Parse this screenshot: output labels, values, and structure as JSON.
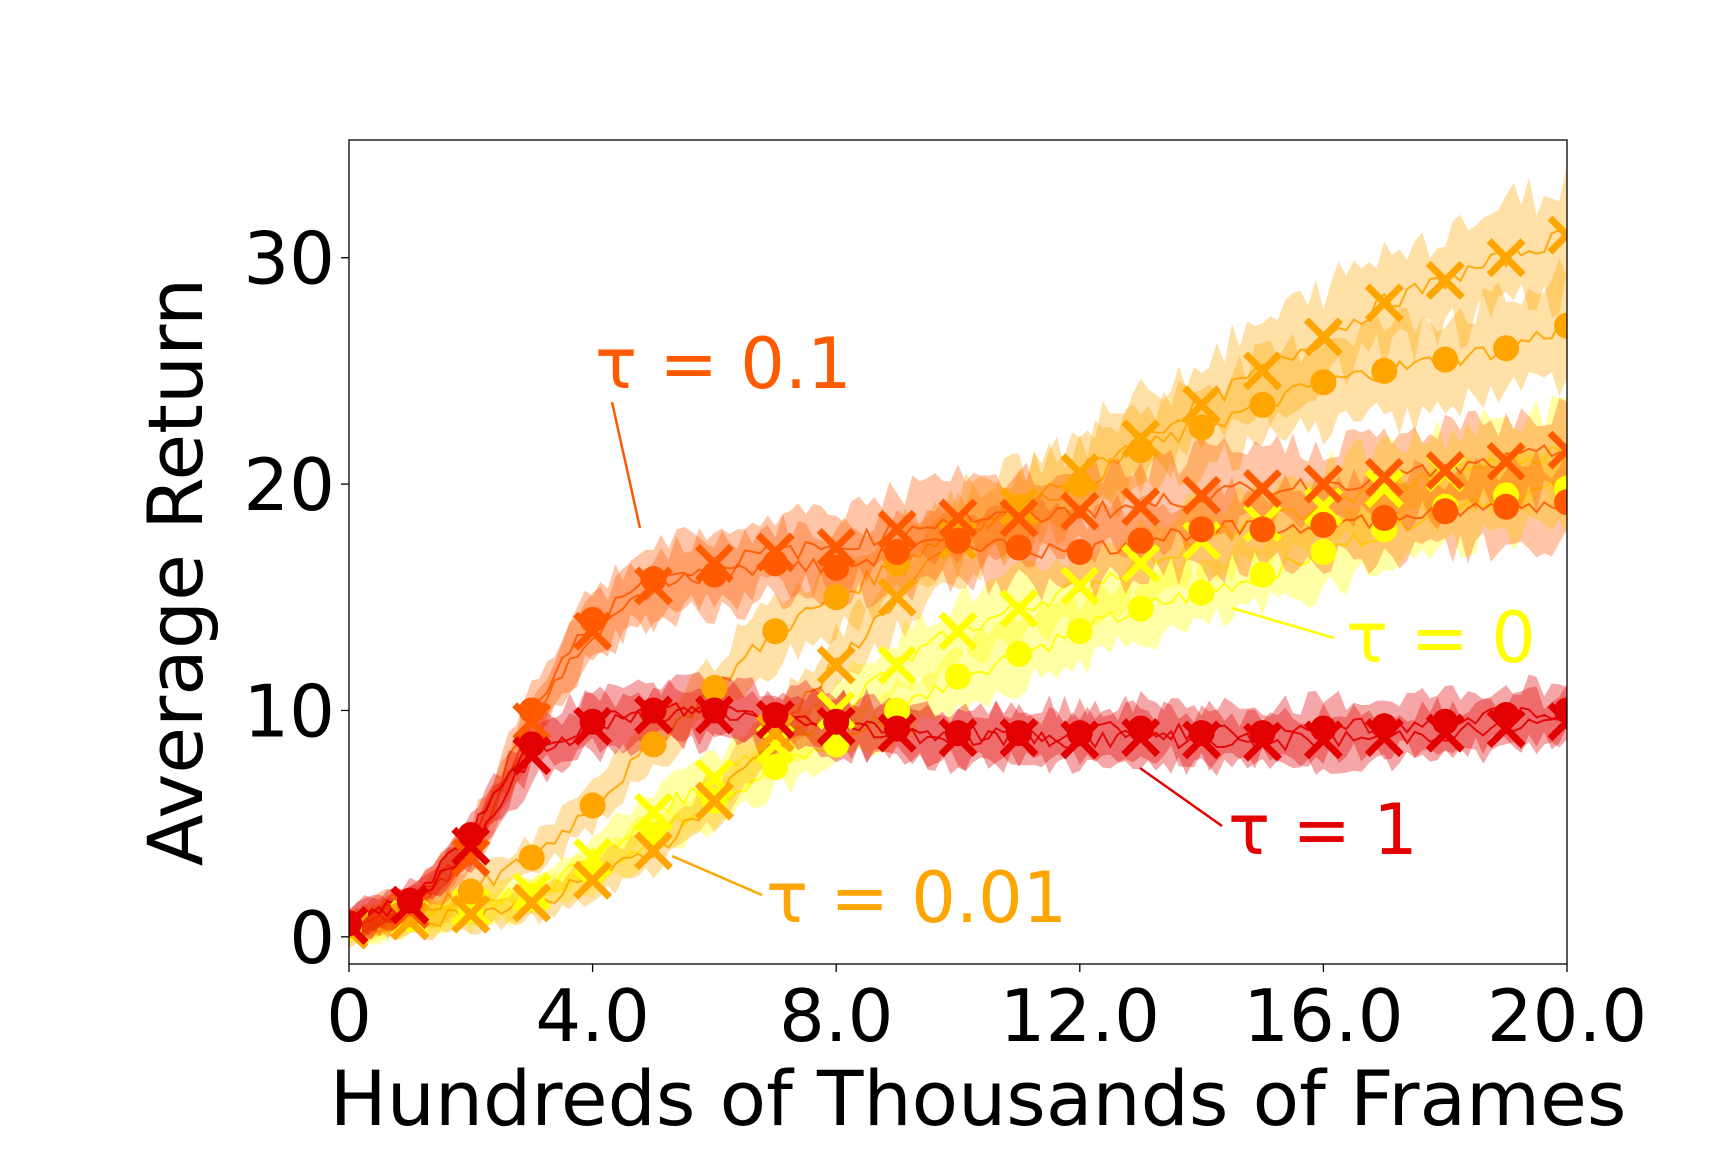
{
  "chart_data": {
    "type": "line",
    "xlabel": "Hundreds of Thousands of Frames",
    "ylabel": "Average Return",
    "xlim": [
      0,
      20
    ],
    "ylim": [
      -1.2,
      35.2
    ],
    "xticks": [
      0,
      4,
      8,
      12,
      16,
      20
    ],
    "xtick_labels": [
      "0",
      "4.0",
      "8.0",
      "12.0",
      "16.0",
      "20.0"
    ],
    "yticks": [
      0,
      10,
      20,
      30
    ],
    "ytick_labels": [
      "0",
      "10",
      "20",
      "30"
    ],
    "grid": false,
    "series": [
      {
        "name": "τ = 0",
        "color": "#ffff00",
        "marker": "circle",
        "x": [
          0,
          1,
          2,
          3,
          4,
          5,
          6,
          7,
          8,
          9,
          10,
          11,
          12,
          13,
          14,
          15,
          16,
          17,
          18,
          19,
          20
        ],
        "y": [
          0.4,
          0.8,
          1.2,
          1.7,
          2.8,
          4.5,
          6.0,
          7.5,
          8.5,
          10.0,
          11.5,
          12.5,
          13.5,
          14.5,
          15.2,
          16.0,
          17.0,
          18.0,
          19.0,
          19.5,
          19.8
        ]
      },
      {
        "name": "τ = 0",
        "color": "#ffff00",
        "marker": "x",
        "x": [
          0,
          1,
          2,
          3,
          4,
          5,
          6,
          7,
          8,
          9,
          10,
          11,
          12,
          13,
          14,
          15,
          16,
          17,
          18,
          19,
          20
        ],
        "y": [
          0.4,
          0.8,
          1.3,
          2.0,
          3.5,
          5.5,
          7.0,
          8.5,
          10.0,
          12.0,
          13.5,
          14.5,
          15.5,
          16.5,
          17.5,
          18.3,
          19.0,
          19.8,
          20.5,
          21.0,
          21.5
        ]
      },
      {
        "name": "τ = 0.01",
        "color": "#ffa500",
        "marker": "circle",
        "x": [
          0,
          1,
          2,
          3,
          4,
          5,
          6,
          7,
          8,
          9,
          10,
          11,
          12,
          13,
          14,
          15,
          16,
          17,
          18,
          19,
          20
        ],
        "y": [
          0.5,
          1.0,
          2.0,
          3.5,
          5.8,
          8.5,
          11.0,
          13.5,
          15.0,
          16.5,
          18.0,
          19.0,
          20.0,
          21.5,
          22.5,
          23.5,
          24.5,
          25.0,
          25.5,
          26.0,
          27.0
        ]
      },
      {
        "name": "τ = 0.01",
        "color": "#ffa500",
        "marker": "x",
        "x": [
          0,
          1,
          2,
          3,
          4,
          5,
          6,
          7,
          8,
          9,
          10,
          11,
          12,
          13,
          14,
          15,
          16,
          17,
          18,
          19,
          20
        ],
        "y": [
          0.3,
          0.7,
          1.0,
          1.5,
          2.5,
          3.8,
          6.0,
          9.0,
          12.0,
          15.0,
          17.5,
          19.0,
          20.5,
          22.0,
          23.5,
          25.0,
          26.5,
          28.0,
          29.0,
          30.0,
          31.0
        ]
      },
      {
        "name": "τ = 0.1",
        "color": "#ff5a00",
        "marker": "circle",
        "x": [
          0,
          1,
          2,
          3,
          4,
          5,
          6,
          7,
          8,
          9,
          10,
          11,
          12,
          13,
          14,
          15,
          16,
          17,
          18,
          19,
          20
        ],
        "y": [
          0.6,
          1.5,
          4.0,
          10.0,
          14.0,
          15.8,
          16.0,
          16.5,
          16.3,
          17.0,
          17.5,
          17.2,
          17.0,
          17.5,
          18.0,
          18.0,
          18.2,
          18.5,
          18.8,
          19.0,
          19.2
        ]
      },
      {
        "name": "τ = 0.1",
        "color": "#ff5a00",
        "marker": "x",
        "x": [
          0,
          1,
          2,
          3,
          4,
          5,
          6,
          7,
          8,
          9,
          10,
          11,
          12,
          13,
          14,
          15,
          16,
          17,
          18,
          19,
          20
        ],
        "y": [
          0.5,
          1.2,
          3.5,
          9.5,
          13.5,
          15.5,
          16.5,
          17.0,
          17.2,
          18.0,
          18.5,
          18.5,
          18.8,
          19.0,
          19.5,
          19.8,
          20.0,
          20.3,
          20.6,
          21.0,
          21.5
        ]
      },
      {
        "name": "τ = 1",
        "color": "#e30000",
        "marker": "circle",
        "x": [
          0,
          1,
          2,
          3,
          4,
          5,
          6,
          7,
          8,
          9,
          10,
          11,
          12,
          13,
          14,
          15,
          16,
          17,
          18,
          19,
          20
        ],
        "y": [
          0.6,
          1.6,
          4.5,
          8.5,
          9.5,
          10.0,
          10.0,
          9.8,
          9.5,
          9.2,
          9.0,
          9.0,
          9.0,
          9.2,
          9.0,
          9.0,
          9.2,
          9.3,
          9.5,
          9.8,
          10.0
        ]
      },
      {
        "name": "τ = 1",
        "color": "#e30000",
        "marker": "x",
        "x": [
          0,
          1,
          2,
          3,
          4,
          5,
          6,
          7,
          8,
          9,
          10,
          11,
          12,
          13,
          14,
          15,
          16,
          17,
          18,
          19,
          20
        ],
        "y": [
          0.5,
          1.4,
          4.0,
          8.0,
          9.3,
          9.8,
          9.8,
          9.6,
          9.3,
          9.0,
          8.8,
          8.8,
          8.7,
          8.8,
          8.7,
          8.6,
          8.7,
          8.8,
          9.0,
          9.2,
          9.5
        ]
      }
    ],
    "annotations": [
      {
        "text": "τ = 0.1",
        "color": "#ff5a00"
      },
      {
        "text": "τ = 0",
        "color": "#ffff00"
      },
      {
        "text": "τ = 1",
        "color": "#e30000"
      },
      {
        "text": "τ = 0.01",
        "color": "#ffa500"
      }
    ]
  }
}
